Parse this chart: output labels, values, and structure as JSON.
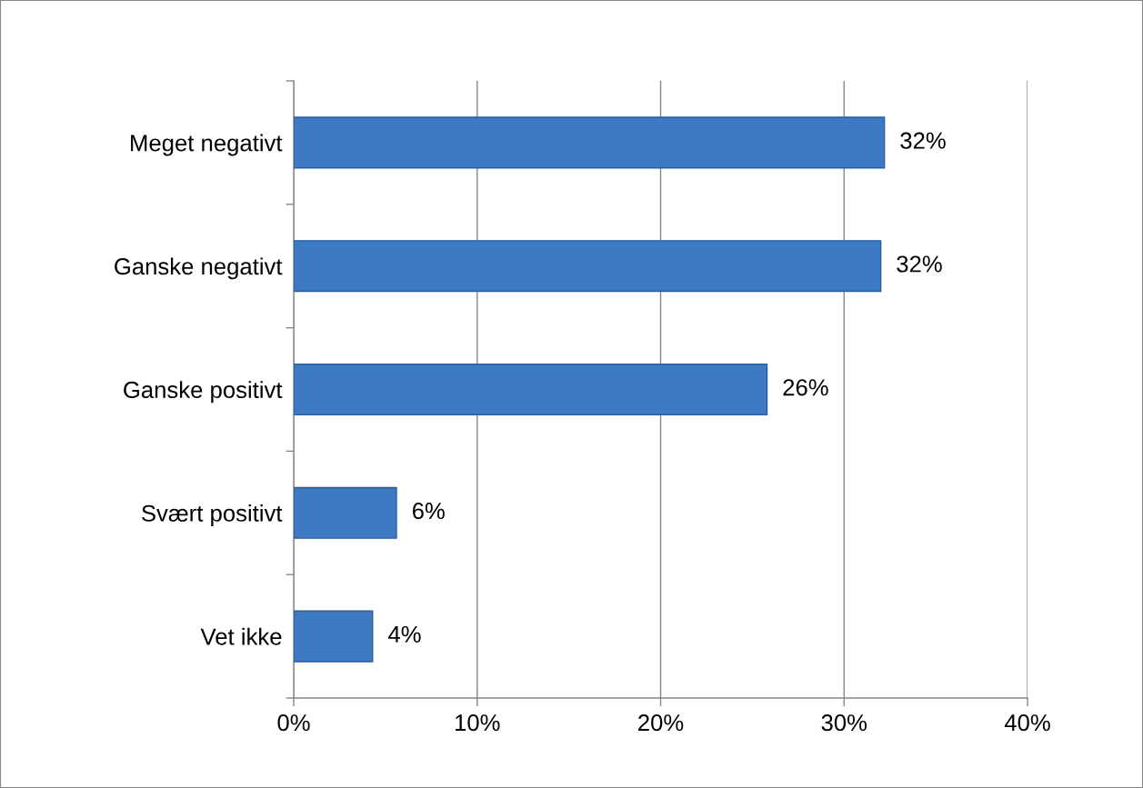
{
  "chart_data": {
    "type": "bar",
    "orientation": "horizontal",
    "categories": [
      "Meget negativt",
      "Ganske negativt",
      "Ganske positivt",
      "Svært positivt",
      "Vet ikke"
    ],
    "values": [
      32.2,
      32.0,
      25.8,
      5.6,
      4.3
    ],
    "value_labels": [
      "32%",
      "32%",
      "26%",
      "6%",
      "4%"
    ],
    "color": "#3c7ac4",
    "xlim": [
      0,
      40
    ],
    "xticks": [
      {
        "value": 0,
        "label": "0%"
      },
      {
        "value": 10,
        "label": "10%"
      },
      {
        "value": 20,
        "label": "20%"
      },
      {
        "value": 30,
        "label": "30%"
      },
      {
        "value": 40,
        "label": "40%"
      }
    ],
    "grid": "x"
  }
}
